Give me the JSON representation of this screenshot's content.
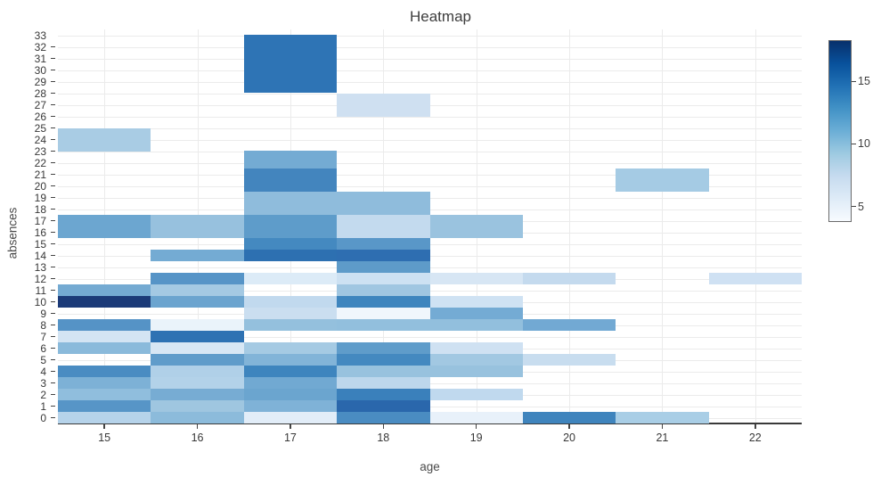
{
  "chart_data": {
    "type": "heatmap",
    "title": "Heatmap",
    "xlabel": "age",
    "ylabel": "absences",
    "xlim": [
      14.5,
      22.5
    ],
    "ylim": [
      -0.5,
      33.5
    ],
    "x_ticks": [
      15,
      16,
      17,
      18,
      19,
      20,
      21,
      22
    ],
    "y_ticks": [
      0,
      1,
      2,
      3,
      4,
      5,
      6,
      7,
      8,
      9,
      10,
      11,
      12,
      13,
      14,
      15,
      16,
      17,
      18,
      19,
      20,
      21,
      22,
      23,
      24,
      25,
      26,
      27,
      28,
      29,
      30,
      31,
      32,
      33
    ],
    "grid": true,
    "colorbar": {
      "min": 3.9,
      "max": 18.3,
      "ticks": [
        5,
        10,
        15
      ],
      "gradient_bottom_to_top": [
        "#f7fbff",
        "#deebf7",
        "#c6dbef",
        "#9ecae1",
        "#6baed6",
        "#4292c6",
        "#2171b5",
        "#08519c",
        "#08306b"
      ]
    },
    "cells_note": "Each cell: age column (1 unit wide, centered on age), y0/y1 = absences span, value estimated from colorbar, color read from pixels.",
    "cells": [
      {
        "age": 15,
        "y0": 23.0,
        "y1": 25.0,
        "value": 8.3,
        "color": "#a9cce4"
      },
      {
        "age": 15,
        "y0": 15.5,
        "y1": 17.5,
        "value": 10.5,
        "color": "#6ca6d0"
      },
      {
        "age": 15,
        "y0": 10.5,
        "y1": 11.5,
        "value": 10.3,
        "color": "#74aad2"
      },
      {
        "age": 15,
        "y0": 9.5,
        "y1": 10.5,
        "value": 17.9,
        "color": "#1b3a78"
      },
      {
        "age": 15,
        "y0": 7.5,
        "y1": 8.5,
        "value": 11.5,
        "color": "#5593c6"
      },
      {
        "age": 15,
        "y0": 6.5,
        "y1": 7.5,
        "value": 5.9,
        "color": "#d3e4f3"
      },
      {
        "age": 15,
        "y0": 5.5,
        "y1": 6.5,
        "value": 9.5,
        "color": "#8abadb"
      },
      {
        "age": 15,
        "y0": 3.5,
        "y1": 4.5,
        "value": 12.2,
        "color": "#4a8cc2"
      },
      {
        "age": 15,
        "y0": 2.5,
        "y1": 3.5,
        "value": 10.0,
        "color": "#7db1d6"
      },
      {
        "age": 15,
        "y0": 1.5,
        "y1": 2.5,
        "value": 9.4,
        "color": "#90bedd"
      },
      {
        "age": 15,
        "y0": 0.5,
        "y1": 1.5,
        "value": 11.4,
        "color": "#5795c7"
      },
      {
        "age": 15,
        "y0": -0.5,
        "y1": 0.5,
        "value": 7.8,
        "color": "#b6d3ea"
      },
      {
        "age": 16,
        "y0": 15.5,
        "y1": 17.5,
        "value": 9.2,
        "color": "#97c1de"
      },
      {
        "age": 16,
        "y0": 13.5,
        "y1": 14.5,
        "value": 10.3,
        "color": "#74abd3"
      },
      {
        "age": 16,
        "y0": 11.5,
        "y1": 12.5,
        "value": 11.5,
        "color": "#5694c7"
      },
      {
        "age": 16,
        "y0": 10.5,
        "y1": 11.5,
        "value": 8.6,
        "color": "#a4c9e3"
      },
      {
        "age": 16,
        "y0": 9.5,
        "y1": 10.5,
        "value": 10.6,
        "color": "#6ba4cf"
      },
      {
        "age": 16,
        "y0": 7.5,
        "y1": 8.5,
        "value": 4.6,
        "color": "#eaf3fa"
      },
      {
        "age": 16,
        "y0": 6.5,
        "y1": 7.5,
        "value": 14.6,
        "color": "#2e72b3"
      },
      {
        "age": 16,
        "y0": 5.5,
        "y1": 6.5,
        "value": 5.7,
        "color": "#d8e7f4"
      },
      {
        "age": 16,
        "y0": 4.5,
        "y1": 5.5,
        "value": 11.1,
        "color": "#609cca"
      },
      {
        "age": 16,
        "y0": 3.5,
        "y1": 4.5,
        "value": 8.0,
        "color": "#b0d0e8"
      },
      {
        "age": 16,
        "y0": 2.5,
        "y1": 3.5,
        "value": 7.9,
        "color": "#b3d2e9"
      },
      {
        "age": 16,
        "y0": 1.5,
        "y1": 2.5,
        "value": 10.2,
        "color": "#77acd3"
      },
      {
        "age": 16,
        "y0": 0.5,
        "y1": 1.5,
        "value": 8.8,
        "color": "#9fc6e0"
      },
      {
        "age": 16,
        "y0": -0.5,
        "y1": 0.5,
        "value": 9.5,
        "color": "#8cbbdb"
      },
      {
        "age": 17,
        "y0": 28.0,
        "y1": 33.05,
        "value": 14.5,
        "color": "#2e74b5"
      },
      {
        "age": 17,
        "y0": 21.5,
        "y1": 23.05,
        "value": 10.3,
        "color": "#74abd3"
      },
      {
        "age": 17,
        "y0": 19.5,
        "y1": 21.5,
        "value": 12.8,
        "color": "#4385be"
      },
      {
        "age": 17,
        "y0": 17.5,
        "y1": 19.5,
        "value": 9.4,
        "color": "#8fbcdc"
      },
      {
        "age": 17,
        "y0": 15.5,
        "y1": 17.5,
        "value": 11.2,
        "color": "#5e9cca"
      },
      {
        "age": 17,
        "y0": 14.5,
        "y1": 15.5,
        "value": 12.6,
        "color": "#4489c0"
      },
      {
        "age": 17,
        "y0": 13.5,
        "y1": 14.5,
        "value": 14.7,
        "color": "#2d70b1"
      },
      {
        "age": 17,
        "y0": 11.5,
        "y1": 12.5,
        "value": 5.4,
        "color": "#dcebf7"
      },
      {
        "age": 17,
        "y0": 9.5,
        "y1": 10.5,
        "value": 7.2,
        "color": "#c1d9ee"
      },
      {
        "age": 17,
        "y0": 8.5,
        "y1": 9.5,
        "value": 6.7,
        "color": "#cadef0"
      },
      {
        "age": 17,
        "y0": 7.5,
        "y1": 8.5,
        "value": 9.3,
        "color": "#94c0dd"
      },
      {
        "age": 17,
        "y0": 5.5,
        "y1": 6.5,
        "value": 8.5,
        "color": "#a5cae3"
      },
      {
        "age": 17,
        "y0": 4.5,
        "y1": 5.5,
        "value": 9.8,
        "color": "#82b4d8"
      },
      {
        "age": 17,
        "y0": 3.5,
        "y1": 4.5,
        "value": 12.9,
        "color": "#3e85be"
      },
      {
        "age": 17,
        "y0": 2.5,
        "y1": 3.5,
        "value": 10.4,
        "color": "#71a9d2"
      },
      {
        "age": 17,
        "y0": 1.5,
        "y1": 2.5,
        "value": 10.6,
        "color": "#6ba5cf"
      },
      {
        "age": 17,
        "y0": 0.5,
        "y1": 1.5,
        "value": 9.9,
        "color": "#7fb2d7"
      },
      {
        "age": 17,
        "y0": -0.5,
        "y1": 0.5,
        "value": 5.1,
        "color": "#e2edf8"
      },
      {
        "age": 18,
        "y0": 26.0,
        "y1": 28.0,
        "value": 6.3,
        "color": "#cfe0f1"
      },
      {
        "age": 18,
        "y0": 17.5,
        "y1": 19.5,
        "value": 9.4,
        "color": "#8fbcdc"
      },
      {
        "age": 18,
        "y0": 15.5,
        "y1": 17.5,
        "value": 7.1,
        "color": "#c3daee"
      },
      {
        "age": 18,
        "y0": 14.5,
        "y1": 15.5,
        "value": 11.4,
        "color": "#5997c8"
      },
      {
        "age": 18,
        "y0": 13.5,
        "y1": 14.5,
        "value": 14.8,
        "color": "#2e6eb1"
      },
      {
        "age": 18,
        "y0": 12.5,
        "y1": 13.5,
        "value": 11.2,
        "color": "#5e9bc9"
      },
      {
        "age": 18,
        "y0": 11.5,
        "y1": 12.5,
        "value": 6.5,
        "color": "#cde1f2"
      },
      {
        "age": 18,
        "y0": 10.5,
        "y1": 11.5,
        "value": 8.8,
        "color": "#a0c6e1"
      },
      {
        "age": 18,
        "y0": 9.5,
        "y1": 10.5,
        "value": 12.9,
        "color": "#3e85be"
      },
      {
        "age": 18,
        "y0": 8.5,
        "y1": 9.5,
        "value": 4.2,
        "color": "#f0f6fc"
      },
      {
        "age": 18,
        "y0": 7.5,
        "y1": 8.5,
        "value": 9.3,
        "color": "#92bfdd"
      },
      {
        "age": 18,
        "y0": 5.5,
        "y1": 6.5,
        "value": 11.1,
        "color": "#5f9cca"
      },
      {
        "age": 18,
        "y0": 4.5,
        "y1": 5.5,
        "value": 12.6,
        "color": "#4489c0"
      },
      {
        "age": 18,
        "y0": 3.5,
        "y1": 4.5,
        "value": 9.1,
        "color": "#98c2de"
      },
      {
        "age": 18,
        "y0": 2.5,
        "y1": 3.5,
        "value": 7.4,
        "color": "#bdd7ec"
      },
      {
        "age": 18,
        "y0": 1.5,
        "y1": 2.5,
        "value": 13.2,
        "color": "#3a80bb"
      },
      {
        "age": 18,
        "y0": 0.5,
        "y1": 1.5,
        "value": 15.4,
        "color": "#2a67ac"
      },
      {
        "age": 18,
        "y0": -0.5,
        "y1": 0.5,
        "value": 12.2,
        "color": "#4a8cc2"
      },
      {
        "age": 19,
        "y0": 15.5,
        "y1": 17.5,
        "value": 9.0,
        "color": "#9ac3df"
      },
      {
        "age": 19,
        "y0": 11.5,
        "y1": 12.5,
        "value": 5.6,
        "color": "#d7e6f4"
      },
      {
        "age": 19,
        "y0": 9.5,
        "y1": 10.5,
        "value": 6.3,
        "color": "#cfe2f3"
      },
      {
        "age": 19,
        "y0": 8.5,
        "y1": 9.5,
        "value": 10.3,
        "color": "#74abd4"
      },
      {
        "age": 19,
        "y0": 7.5,
        "y1": 8.5,
        "value": 9.3,
        "color": "#92bfdd"
      },
      {
        "age": 19,
        "y0": 5.5,
        "y1": 6.5,
        "value": 6.3,
        "color": "#cfe1f2"
      },
      {
        "age": 19,
        "y0": 4.5,
        "y1": 5.5,
        "value": 8.7,
        "color": "#a2c8e2"
      },
      {
        "age": 19,
        "y0": 3.5,
        "y1": 4.5,
        "value": 9.1,
        "color": "#98c2de"
      },
      {
        "age": 19,
        "y0": 1.5,
        "y1": 2.5,
        "value": 7.3,
        "color": "#c0d9ee"
      },
      {
        "age": 19,
        "y0": -0.5,
        "y1": 0.5,
        "value": 4.8,
        "color": "#e8f1fa"
      },
      {
        "age": 20,
        "y0": 11.5,
        "y1": 12.5,
        "value": 7.0,
        "color": "#c4daee"
      },
      {
        "age": 20,
        "y0": 7.5,
        "y1": 8.5,
        "value": 10.4,
        "color": "#72a9d3"
      },
      {
        "age": 20,
        "y0": 4.5,
        "y1": 5.5,
        "value": 6.8,
        "color": "#c8ddef"
      },
      {
        "age": 20,
        "y0": -0.5,
        "y1": 0.5,
        "value": 12.9,
        "color": "#3f84bd"
      },
      {
        "age": 21,
        "y0": 19.5,
        "y1": 21.5,
        "value": 8.5,
        "color": "#a5cbe4"
      },
      {
        "age": 21,
        "y0": -0.5,
        "y1": 0.5,
        "value": 8.3,
        "color": "#a9cee6"
      },
      {
        "age": 22,
        "y0": 11.5,
        "y1": 12.5,
        "value": 6.3,
        "color": "#cfe1f3"
      }
    ]
  }
}
